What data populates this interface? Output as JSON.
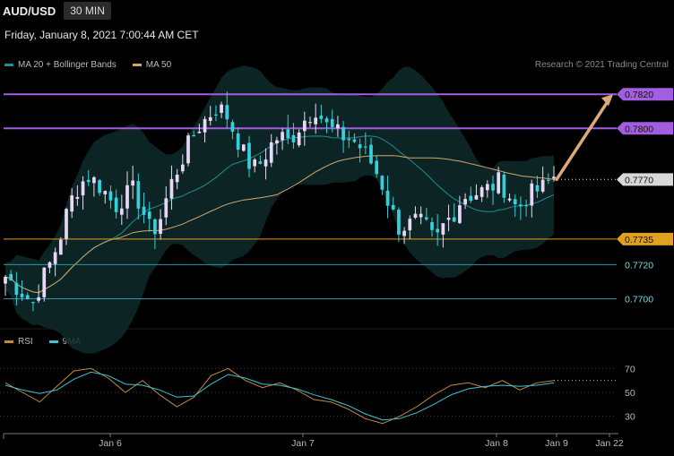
{
  "header": {
    "symbol": "AUD/USD",
    "timeframe": "30 MIN",
    "datetime": "Friday, January 8, 2021 7:00:44 AM CET",
    "credit": "Research © 2021 Trading Central"
  },
  "legend_main": [
    {
      "label": "MA 20 + Bollinger Bands",
      "color": "#1f8f91"
    },
    {
      "label": "MA 50",
      "color": "#d4a46a"
    }
  ],
  "legend_rsi": [
    {
      "label": "RSI",
      "color": "#c9883a"
    },
    {
      "label": "9MA",
      "color": "#38c6d6"
    }
  ],
  "colors": {
    "bull_candle": "#e8d8f6",
    "bear_candle": "#35d0dc",
    "resistance": "#a35de0",
    "support": "#e0a020",
    "target_arrow": "#dcaa78",
    "level_line": "#2a9aa0",
    "band_fill": "#0f2a2a"
  },
  "chart_data": [
    {
      "type": "candlestick",
      "title": "",
      "x_tick_labels": [
        "Jan 6",
        "Jan 7",
        "Jan 8",
        "Jan 9",
        "Jan 22"
      ],
      "ylim": [
        0.7685,
        0.7828
      ],
      "levels": [
        {
          "value": 0.782,
          "label": "0.7820",
          "kind": "resistance"
        },
        {
          "value": 0.78,
          "label": "0.7800",
          "kind": "resistance"
        },
        {
          "value": 0.777,
          "label": "0.7770",
          "kind": "current"
        },
        {
          "value": 0.7735,
          "label": "0.7735",
          "kind": "support"
        },
        {
          "value": 0.772,
          "label": "0.7720",
          "kind": "level"
        },
        {
          "value": 0.77,
          "label": "0.7700",
          "kind": "level"
        }
      ],
      "close_path": [
        0.7713,
        0.7708,
        0.7703,
        0.7697,
        0.7711,
        0.7722,
        0.7736,
        0.7756,
        0.7766,
        0.7772,
        0.7768,
        0.7762,
        0.7754,
        0.776,
        0.7764,
        0.7752,
        0.7738,
        0.7748,
        0.7766,
        0.7778,
        0.779,
        0.78,
        0.7806,
        0.7812,
        0.781,
        0.7798,
        0.7786,
        0.7776,
        0.778,
        0.779,
        0.7796,
        0.7792,
        0.78,
        0.7807,
        0.7812,
        0.7802,
        0.7798,
        0.7795,
        0.7793,
        0.7788,
        0.778,
        0.777,
        0.7755,
        0.7742,
        0.7743,
        0.7746,
        0.7742,
        0.7733,
        0.7744,
        0.775,
        0.776,
        0.7761,
        0.7763,
        0.7765,
        0.7769,
        0.7762,
        0.7752,
        0.776,
        0.7763,
        0.7766,
        0.7772
      ],
      "projection": {
        "from": 0.777,
        "to": 0.782
      }
    },
    {
      "type": "line",
      "title": "",
      "series": [
        {
          "name": "RSI",
          "values": [
            58,
            50,
            42,
            55,
            68,
            70,
            62,
            50,
            60,
            48,
            38,
            46,
            64,
            70,
            60,
            54,
            58,
            52,
            44,
            42,
            36,
            28,
            24,
            30,
            38,
            48,
            56,
            58,
            54,
            60,
            52,
            58,
            60
          ]
        },
        {
          "name": "9MA",
          "values": [
            56,
            52,
            49,
            52,
            61,
            67,
            64,
            57,
            56,
            52,
            46,
            47,
            57,
            65,
            62,
            57,
            56,
            53,
            48,
            44,
            39,
            32,
            27,
            28,
            33,
            40,
            48,
            53,
            55,
            56,
            55,
            56,
            58
          ]
        }
      ],
      "ylim": [
        20,
        80
      ],
      "y_ticks": [
        70,
        50,
        30
      ]
    }
  ]
}
